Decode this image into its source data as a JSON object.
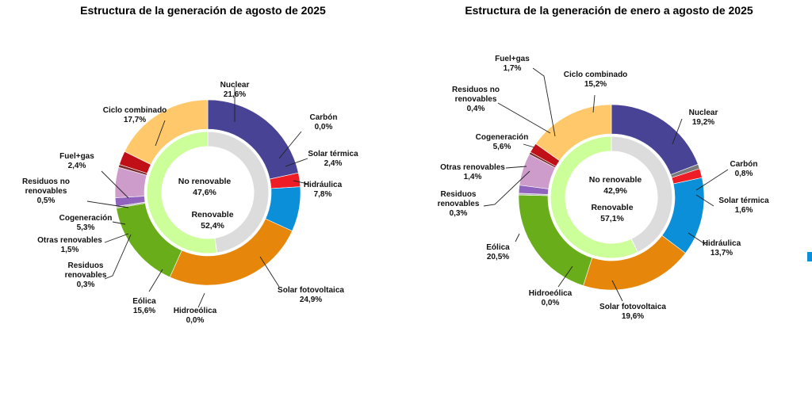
{
  "colors": {
    "nuclear": "#484394",
    "carbon": "#7a7a7a",
    "solar_termica": "#ee1c25",
    "hidraulica": "#0a8fd8",
    "solar_fotovoltaica": "#e6870b",
    "hidroeolica": "#4a7c14",
    "eolica": "#6aad1b",
    "residuos_renovables": "#b8b8b8",
    "otras_renovables": "#9063bf",
    "cogeneracion": "#cd9ccb",
    "residuos_no_renovables": "#7a2a28",
    "fuel_gas": "#c00f16",
    "ciclo_combinado": "#ffc96b",
    "inner_no_renovable": "#dcdcdc",
    "inner_renovable": "#ccff99",
    "edge_mark": "#0a8fd8"
  },
  "chart_data": [
    {
      "type": "pie",
      "title": "Estructura de la generación de agosto de 2025",
      "outer": [
        {
          "key": "nuclear",
          "name": "Nuclear",
          "label": "21,6%",
          "value": 21.6
        },
        {
          "key": "carbon",
          "name": "Carbón",
          "label": "0,0%",
          "value": 0.0
        },
        {
          "key": "solar_termica",
          "name": "Solar térmica",
          "label": "2,4%",
          "value": 2.4
        },
        {
          "key": "hidraulica",
          "name": "Hidráulica",
          "label": "7,8%",
          "value": 7.8
        },
        {
          "key": "solar_fotovoltaica",
          "name": "Solar fotovoltaica",
          "label": "24,9%",
          "value": 24.9
        },
        {
          "key": "hidroeolica",
          "name": "Hidroeólica",
          "label": "0,0%",
          "value": 0.0
        },
        {
          "key": "eolica",
          "name": "Eólica",
          "label": "15,6%",
          "value": 15.6
        },
        {
          "key": "residuos_renovables",
          "name": "Residuos renovables",
          "label": "0,3%",
          "value": 0.3
        },
        {
          "key": "otras_renovables",
          "name": "Otras renovables",
          "label": "1,5%",
          "value": 1.5
        },
        {
          "key": "cogeneracion",
          "name": "Cogeneración",
          "label": "5,3%",
          "value": 5.3
        },
        {
          "key": "residuos_no_renovables",
          "name": "Residuos no renovables",
          "label": "0,5%",
          "value": 0.5
        },
        {
          "key": "fuel_gas",
          "name": "Fuel+gas",
          "label": "2,4%",
          "value": 2.4
        },
        {
          "key": "ciclo_combinado",
          "name": "Ciclo combinado",
          "label": "17,7%",
          "value": 17.7
        }
      ],
      "inner": [
        {
          "key": "inner_no_renovable",
          "name": "No renovable",
          "label": "47,6%",
          "value": 47.6
        },
        {
          "key": "inner_renovable",
          "name": "Renovable",
          "label": "52,4%",
          "value": 52.4
        }
      ]
    },
    {
      "type": "pie",
      "title": "Estructura de la generación de enero a agosto de 2025",
      "outer": [
        {
          "key": "nuclear",
          "name": "Nuclear",
          "label": "19,2%",
          "value": 19.2
        },
        {
          "key": "carbon",
          "name": "Carbón",
          "label": "0,8%",
          "value": 0.8
        },
        {
          "key": "solar_termica",
          "name": "Solar térmica",
          "label": "1,6%",
          "value": 1.6
        },
        {
          "key": "hidraulica",
          "name": "Hidráulica",
          "label": "13,7%",
          "value": 13.7
        },
        {
          "key": "solar_fotovoltaica",
          "name": "Solar fotovoltaica",
          "label": "19,6%",
          "value": 19.6
        },
        {
          "key": "hidroeolica",
          "name": "Hidroeólica",
          "label": "0,0%",
          "value": 0.0
        },
        {
          "key": "eolica",
          "name": "Eólica",
          "label": "20,5%",
          "value": 20.5
        },
        {
          "key": "residuos_renovables",
          "name": "Residuos renovables",
          "label": "0,3%",
          "value": 0.3
        },
        {
          "key": "otras_renovables",
          "name": "Otras renovables",
          "label": "1,4%",
          "value": 1.4
        },
        {
          "key": "cogeneracion",
          "name": "Cogeneración",
          "label": "5,6%",
          "value": 5.6
        },
        {
          "key": "residuos_no_renovables",
          "name": "Residuos no renovables",
          "label": "0,4%",
          "value": 0.4
        },
        {
          "key": "fuel_gas",
          "name": "Fuel+gas",
          "label": "1,7%",
          "value": 1.7
        },
        {
          "key": "ciclo_combinado",
          "name": "Ciclo combinado",
          "label": "15,2%",
          "value": 15.2
        }
      ],
      "inner": [
        {
          "key": "inner_no_renovable",
          "name": "No renovable",
          "label": "42,9%",
          "value": 42.9
        },
        {
          "key": "inner_renovable",
          "name": "Renovable",
          "label": "57,1%",
          "value": 57.1
        }
      ]
    }
  ]
}
